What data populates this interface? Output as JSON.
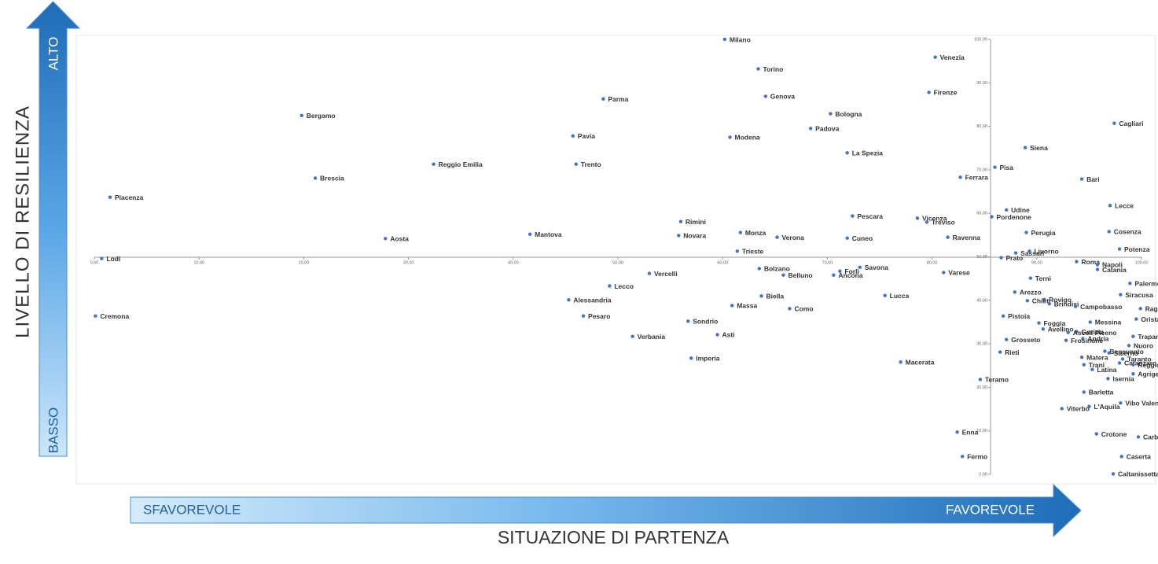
{
  "chart_data": {
    "type": "scatter",
    "color": "#4472c4",
    "y_axis": {
      "title": "LIVELLO DI RESILIENZA",
      "high": "ALTO",
      "low": "BASSO"
    },
    "x_axis": {
      "title": "SITUAZIONE DI PARTENZA",
      "low": "SFAVOREVOLE",
      "high": "FAVOREVOLE"
    },
    "xlim": [
      0,
      100
    ],
    "ylim": [
      0,
      100
    ],
    "xticks": [
      {
        "value": 0,
        "label": "0,00"
      },
      {
        "value": 10,
        "label": "10,00"
      },
      {
        "value": 20,
        "label": "20,00"
      },
      {
        "value": 30,
        "label": "30,00"
      },
      {
        "value": 40,
        "label": "40,00"
      },
      {
        "value": 50,
        "label": "50,00"
      },
      {
        "value": 60,
        "label": "60,00"
      },
      {
        "value": 70,
        "label": "70,00"
      },
      {
        "value": 80,
        "label": "80,00"
      },
      {
        "value": 90,
        "label": "90,00"
      },
      {
        "value": 100,
        "label": "100,00"
      }
    ],
    "yticks": [
      {
        "value": 0,
        "label": "0,00"
      },
      {
        "value": 10,
        "label": "10,00"
      },
      {
        "value": 20,
        "label": "20,00"
      },
      {
        "value": 30,
        "label": "30,00"
      },
      {
        "value": 40,
        "label": "40,00"
      },
      {
        "value": 50,
        "label": "50,00"
      },
      {
        "value": 60,
        "label": "60,00"
      },
      {
        "value": 70,
        "label": "70,00"
      },
      {
        "value": 80,
        "label": "80,00"
      },
      {
        "value": 90,
        "label": "90,00"
      },
      {
        "value": 100,
        "label": "100,00"
      }
    ],
    "labels": [
      "Milano",
      "Venezia",
      "Torino",
      "Genova",
      "Parma",
      "Firenze",
      "Bologna",
      "Bergamo",
      "Padova",
      "Cagliari",
      "Pavia",
      "Modena",
      "Siena",
      "La Spezia",
      "Reggio Emilia",
      "Trento",
      "Pisa",
      "Brescia",
      "Ferrara",
      "Bari",
      "Piacenza",
      "Lecce",
      "Udine",
      "Pordenone",
      "Pescara",
      "Vicenza",
      "Treviso",
      "Rimini",
      "Perugia",
      "Cosenza",
      "Monza",
      "Mantova",
      "Novara",
      "Verona",
      "Aosta",
      "Cuneo",
      "Ravenna",
      "Potenza",
      "Sassari",
      "Livorno",
      "Trieste",
      "Lodi",
      "Prato",
      "Roma",
      "Napoli",
      "Catania",
      "Forlì",
      "Bolzano",
      "Savona",
      "Ancona",
      "Vercelli",
      "Belluno",
      "Varese",
      "Terni",
      "Palermo",
      "Lecco",
      "Arezzo",
      "Siracusa",
      "Lucca",
      "Biella",
      "Rovigo",
      "Alessandria",
      "Chieti",
      "Brindisi",
      "Campobasso",
      "Massa",
      "Como",
      "Ragusa",
      "Cremona",
      "Pesaro",
      "Pistoia",
      "Oristano",
      "Foggia",
      "Messina",
      "Sondrio",
      "Avellino",
      "Gorizia",
      "Ascoli Piceno",
      "Asti",
      "Verbania",
      "Trapani",
      "Andria",
      "Grosseto",
      "Frosinone",
      "Nuoro",
      "Benevento",
      "Salerno",
      "Rieti",
      "Matera",
      "Taranto",
      "Imperia",
      "Catanzaro",
      "Macerata",
      "Trani",
      "Reggio Calabria",
      "Latina",
      "Teramo",
      "Isernia",
      "Agrigento",
      "Barletta",
      "Vibo Valentia",
      "L'Aquila",
      "Viterbo",
      "Enna",
      "Crotone",
      "Carbonia",
      "Fermo",
      "Caserta",
      "Caltanissetta"
    ],
    "x": [
      60.2,
      80.3,
      63.4,
      64.1,
      48.6,
      79.7,
      70.3,
      19.8,
      68.4,
      97.4,
      45.7,
      60.7,
      88.9,
      71.9,
      32.4,
      46.0,
      86.0,
      21.1,
      82.7,
      94.3,
      1.5,
      97.0,
      87.1,
      85.7,
      72.4,
      78.6,
      79.5,
      56.0,
      89.0,
      96.9,
      61.7,
      41.6,
      55.8,
      65.2,
      27.8,
      71.9,
      81.5,
      97.9,
      88.0,
      89.3,
      61.4,
      0.7,
      86.6,
      93.8,
      95.8,
      95.8,
      71.2,
      63.5,
      73.1,
      70.6,
      53.0,
      65.8,
      81.1,
      89.4,
      98.9,
      49.2,
      87.9,
      98.0,
      75.5,
      63.7,
      90.7,
      45.3,
      89.1,
      91.2,
      93.7,
      60.9,
      66.4,
      99.9,
      0.1,
      46.7,
      86.8,
      99.5,
      90.2,
      95.1,
      56.7,
      90.6,
      93.8,
      93.0,
      59.5,
      51.4,
      99.2,
      94.4,
      87.1,
      92.8,
      98.8,
      96.5,
      96.9,
      86.5,
      94.3,
      98.2,
      57.0,
      97.9,
      77.0,
      94.5,
      99.2,
      95.3,
      84.6,
      96.8,
      99.2,
      94.5,
      98.0,
      95.0,
      92.4,
      82.4,
      95.7,
      99.7,
      82.9,
      98.1,
      97.3
    ],
    "y": [
      100.0,
      95.9,
      93.2,
      86.9,
      86.3,
      87.8,
      82.9,
      82.5,
      79.5,
      80.7,
      77.8,
      77.5,
      75.1,
      73.9,
      71.3,
      71.3,
      70.6,
      68.1,
      68.3,
      67.9,
      63.7,
      61.8,
      60.8,
      59.2,
      59.4,
      58.9,
      58.0,
      58.1,
      55.6,
      55.8,
      55.6,
      55.2,
      54.9,
      54.5,
      54.2,
      54.3,
      54.5,
      51.8,
      50.9,
      51.3,
      51.3,
      49.6,
      49.8,
      48.9,
      48.2,
      47.1,
      46.7,
      47.3,
      47.6,
      45.8,
      46.2,
      45.8,
      46.4,
      45.1,
      43.9,
      43.3,
      41.9,
      41.3,
      41.1,
      41.0,
      40.2,
      40.1,
      39.9,
      39.2,
      38.6,
      38.8,
      38.1,
      38.1,
      36.4,
      36.4,
      36.4,
      35.7,
      34.8,
      35.0,
      35.2,
      33.4,
      32.8,
      32.6,
      32.1,
      31.7,
      31.7,
      31.2,
      31.0,
      30.8,
      29.6,
      28.3,
      27.9,
      28.1,
      26.9,
      26.5,
      26.7,
      25.6,
      25.8,
      25.2,
      25.2,
      24.1,
      21.8,
      22.0,
      23.1,
      18.9,
      16.4,
      15.6,
      15.1,
      9.7,
      9.3,
      8.6,
      4.1,
      4.1,
      0.1
    ]
  }
}
